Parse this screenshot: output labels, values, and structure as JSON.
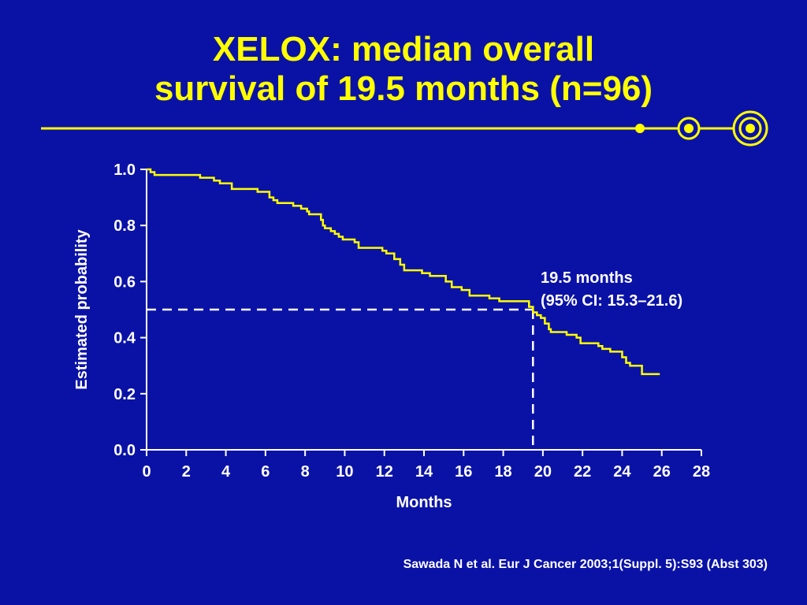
{
  "slide": {
    "title_line1": "XELOX: median overall",
    "title_line2": "survival of 19.5 months (n=96)",
    "citation": "Sawada N et al. Eur J Cancer 2003;1(Suppl. 5):S93 (Abst 303)"
  },
  "colors": {
    "background": "#0a12a6",
    "accent": "#ffff00",
    "text": "#ffffff"
  },
  "chart_data": {
    "type": "line",
    "step": true,
    "title": "",
    "xlabel": "Months",
    "ylabel": "Estimated probability",
    "xlim": [
      0,
      28
    ],
    "ylim": [
      0,
      1
    ],
    "x_ticks": [
      "0",
      "2",
      "4",
      "6",
      "8",
      "10",
      "12",
      "14",
      "16",
      "18",
      "20",
      "22",
      "24",
      "26",
      "28"
    ],
    "y_ticks": [
      "0.0",
      "0.2",
      "0.4",
      "0.6",
      "0.8",
      "1.0"
    ],
    "grid": false,
    "series": [
      {
        "color": "#ffff00",
        "points": [
          [
            0,
            1.0
          ],
          [
            0.2,
            0.99
          ],
          [
            0.4,
            0.98
          ],
          [
            2.7,
            0.97
          ],
          [
            3.4,
            0.96
          ],
          [
            3.7,
            0.95
          ],
          [
            4.3,
            0.93
          ],
          [
            5.6,
            0.92
          ],
          [
            6.2,
            0.9
          ],
          [
            6.4,
            0.89
          ],
          [
            6.6,
            0.88
          ],
          [
            7.4,
            0.87
          ],
          [
            7.8,
            0.86
          ],
          [
            8.1,
            0.85
          ],
          [
            8.2,
            0.84
          ],
          [
            8.8,
            0.82
          ],
          [
            8.9,
            0.8
          ],
          [
            9.0,
            0.79
          ],
          [
            9.3,
            0.78
          ],
          [
            9.5,
            0.77
          ],
          [
            9.7,
            0.76
          ],
          [
            9.9,
            0.75
          ],
          [
            10.5,
            0.74
          ],
          [
            10.7,
            0.72
          ],
          [
            11.9,
            0.71
          ],
          [
            12.1,
            0.7
          ],
          [
            12.5,
            0.68
          ],
          [
            12.8,
            0.66
          ],
          [
            13.0,
            0.64
          ],
          [
            13.9,
            0.63
          ],
          [
            14.3,
            0.62
          ],
          [
            15.1,
            0.6
          ],
          [
            15.4,
            0.58
          ],
          [
            15.9,
            0.57
          ],
          [
            16.3,
            0.55
          ],
          [
            17.3,
            0.54
          ],
          [
            17.8,
            0.53
          ],
          [
            19.3,
            0.51
          ],
          [
            19.5,
            0.49
          ],
          [
            19.7,
            0.48
          ],
          [
            19.9,
            0.47
          ],
          [
            20.1,
            0.45
          ],
          [
            20.3,
            0.43
          ],
          [
            20.4,
            0.42
          ],
          [
            21.2,
            0.41
          ],
          [
            21.7,
            0.4
          ],
          [
            21.9,
            0.38
          ],
          [
            22.8,
            0.37
          ],
          [
            23.0,
            0.36
          ],
          [
            23.4,
            0.35
          ],
          [
            24.0,
            0.33
          ],
          [
            24.2,
            0.31
          ],
          [
            24.4,
            0.3
          ],
          [
            25.0,
            0.27
          ],
          [
            25.9,
            0.27
          ]
        ]
      }
    ],
    "median": {
      "x": 19.5,
      "y": 0.5,
      "label_line1": "19.5 months",
      "label_line2": "(95% CI: 15.3–21.6)"
    }
  }
}
